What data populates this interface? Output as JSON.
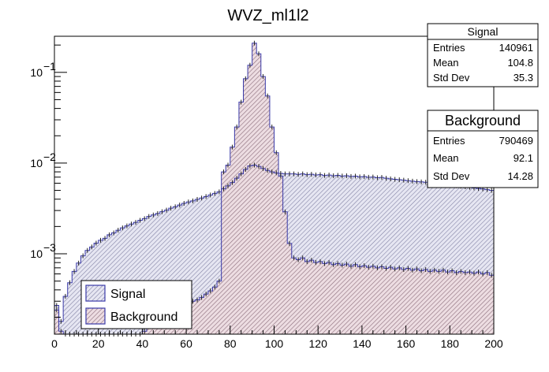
{
  "chart_data": {
    "type": "histogram",
    "title": "WVZ_ml1l2",
    "xlabel": "",
    "ylabel": "",
    "xlim": [
      0,
      200
    ],
    "ylim": [
      0.00013,
      0.25
    ],
    "yscale": "log",
    "x_ticks": [
      "0",
      "20",
      "40",
      "60",
      "80",
      "100",
      "120",
      "140",
      "160",
      "180",
      "200"
    ],
    "y_ticks": [
      {
        "value": 0.1,
        "base": "10",
        "exp": "−1"
      },
      {
        "value": 0.01,
        "base": "10",
        "exp": "−2"
      },
      {
        "value": 0.001,
        "base": "10",
        "exp": "−3"
      }
    ],
    "grid": false,
    "legend_position": "bottom-left",
    "series": [
      {
        "name": "Signal",
        "color": "#3a3aa8",
        "fill": "#c9c9e6",
        "points": [
          [
            0,
            0.00027
          ],
          [
            2,
            0.00018
          ],
          [
            4,
            0.00034
          ],
          [
            6,
            0.00048
          ],
          [
            8,
            0.00064
          ],
          [
            10,
            0.00079
          ],
          [
            12,
            0.00095
          ],
          [
            14,
            0.00109
          ],
          [
            16,
            0.00119
          ],
          [
            18,
            0.00131
          ],
          [
            20,
            0.00141
          ],
          [
            22,
            0.00148
          ],
          [
            24,
            0.00162
          ],
          [
            26,
            0.0017
          ],
          [
            28,
            0.00182
          ],
          [
            30,
            0.00193
          ],
          [
            32,
            0.00203
          ],
          [
            34,
            0.00213
          ],
          [
            36,
            0.00222
          ],
          [
            38,
            0.00234
          ],
          [
            40,
            0.00244
          ],
          [
            42,
            0.00258
          ],
          [
            44,
            0.00268
          ],
          [
            46,
            0.00278
          ],
          [
            48,
            0.00291
          ],
          [
            50,
            0.00303
          ],
          [
            52,
            0.00318
          ],
          [
            54,
            0.0033
          ],
          [
            56,
            0.00345
          ],
          [
            58,
            0.0036
          ],
          [
            60,
            0.00373
          ],
          [
            62,
            0.00383
          ],
          [
            64,
            0.00398
          ],
          [
            66,
            0.00412
          ],
          [
            68,
            0.00428
          ],
          [
            70,
            0.00445
          ],
          [
            72,
            0.00463
          ],
          [
            74,
            0.00482
          ],
          [
            76,
            0.0052
          ],
          [
            78,
            0.0056
          ],
          [
            80,
            0.0061
          ],
          [
            82,
            0.0068
          ],
          [
            84,
            0.0076
          ],
          [
            86,
            0.0085
          ],
          [
            88,
            0.0093
          ],
          [
            90,
            0.0095
          ],
          [
            92,
            0.0092
          ],
          [
            94,
            0.0087
          ],
          [
            96,
            0.0083
          ],
          [
            98,
            0.008
          ],
          [
            100,
            0.0078
          ],
          [
            102,
            0.0077
          ],
          [
            104,
            0.0076
          ],
          [
            106,
            0.0076
          ],
          [
            108,
            0.0076
          ],
          [
            110,
            0.0075
          ],
          [
            112,
            0.0076
          ],
          [
            114,
            0.00745
          ],
          [
            116,
            0.00752
          ],
          [
            118,
            0.0074
          ],
          [
            120,
            0.00745
          ],
          [
            122,
            0.0073
          ],
          [
            124,
            0.00738
          ],
          [
            126,
            0.00725
          ],
          [
            128,
            0.00732
          ],
          [
            130,
            0.0072
          ],
          [
            132,
            0.00725
          ],
          [
            134,
            0.00712
          ],
          [
            136,
            0.00718
          ],
          [
            138,
            0.00705
          ],
          [
            140,
            0.0071
          ],
          [
            142,
            0.00698
          ],
          [
            144,
            0.00702
          ],
          [
            146,
            0.0069
          ],
          [
            148,
            0.00695
          ],
          [
            150,
            0.0068
          ],
          [
            152,
            0.0067
          ],
          [
            154,
            0.00662
          ],
          [
            156,
            0.00655
          ],
          [
            158,
            0.00648
          ],
          [
            160,
            0.0064
          ],
          [
            162,
            0.00632
          ],
          [
            164,
            0.00625
          ],
          [
            166,
            0.0062
          ],
          [
            168,
            0.00615
          ],
          [
            170,
            0.00605
          ],
          [
            172,
            0.00598
          ],
          [
            174,
            0.0059
          ],
          [
            176,
            0.00585
          ],
          [
            178,
            0.00578
          ],
          [
            180,
            0.0057
          ],
          [
            182,
            0.00562
          ],
          [
            184,
            0.00555
          ],
          [
            186,
            0.00548
          ],
          [
            188,
            0.0054
          ],
          [
            190,
            0.00532
          ],
          [
            192,
            0.00525
          ],
          [
            194,
            0.00518
          ],
          [
            196,
            0.0051
          ],
          [
            198,
            0.005
          ]
        ]
      },
      {
        "name": "Background",
        "color": "#3a3aa8",
        "fill": "#e8cfd6",
        "points": [
          [
            0,
            0.00024
          ],
          [
            2,
            0.00014
          ],
          [
            4,
            0.00013
          ],
          [
            6,
            0.00013
          ],
          [
            8,
            0.00013
          ],
          [
            10,
            0.00013
          ],
          [
            12,
            0.00013
          ],
          [
            14,
            0.00013
          ],
          [
            16,
            0.00013
          ],
          [
            18,
            0.00013
          ],
          [
            20,
            0.00013
          ],
          [
            22,
            0.00013
          ],
          [
            24,
            0.00013
          ],
          [
            26,
            0.00013
          ],
          [
            28,
            0.00013
          ],
          [
            30,
            0.00013
          ],
          [
            32,
            0.00013
          ],
          [
            34,
            0.00013
          ],
          [
            36,
            0.00013
          ],
          [
            38,
            0.00013
          ],
          [
            40,
            0.00014
          ],
          [
            42,
            0.00016
          ],
          [
            44,
            0.00018
          ],
          [
            46,
            0.0002
          ],
          [
            48,
            0.00022
          ],
          [
            50,
            0.00023
          ],
          [
            52,
            0.00024
          ],
          [
            54,
            0.00025
          ],
          [
            56,
            0.00026
          ],
          [
            58,
            0.00027
          ],
          [
            60,
            0.00028
          ],
          [
            62,
            0.0003
          ],
          [
            64,
            0.00031
          ],
          [
            66,
            0.00033
          ],
          [
            68,
            0.00036
          ],
          [
            70,
            0.00039
          ],
          [
            72,
            0.00043
          ],
          [
            74,
            0.0005
          ],
          [
            76,
            0.008
          ],
          [
            78,
            0.0095
          ],
          [
            80,
            0.015
          ],
          [
            82,
            0.025
          ],
          [
            84,
            0.047
          ],
          [
            86,
            0.085
          ],
          [
            88,
            0.12
          ],
          [
            90,
            0.21
          ],
          [
            92,
            0.16
          ],
          [
            94,
            0.09
          ],
          [
            96,
            0.055
          ],
          [
            98,
            0.025
          ],
          [
            100,
            0.013
          ],
          [
            102,
            0.0072
          ],
          [
            104,
            0.0029
          ],
          [
            106,
            0.0013
          ],
          [
            108,
            0.0009
          ],
          [
            110,
            0.00086
          ],
          [
            112,
            0.0009
          ],
          [
            114,
            0.00082
          ],
          [
            116,
            0.00085
          ],
          [
            118,
            0.0008
          ],
          [
            120,
            0.00082
          ],
          [
            122,
            0.00078
          ],
          [
            124,
            0.0008
          ],
          [
            126,
            0.00076
          ],
          [
            128,
            0.00078
          ],
          [
            130,
            0.00075
          ],
          [
            132,
            0.00077
          ],
          [
            134,
            0.00073
          ],
          [
            136,
            0.00076
          ],
          [
            138,
            0.00072
          ],
          [
            140,
            0.00074
          ],
          [
            142,
            0.00071
          ],
          [
            144,
            0.00073
          ],
          [
            146,
            0.0007
          ],
          [
            148,
            0.00072
          ],
          [
            150,
            0.00069
          ],
          [
            152,
            0.00071
          ],
          [
            154,
            0.00068
          ],
          [
            156,
            0.0007
          ],
          [
            158,
            0.00067
          ],
          [
            160,
            0.00069
          ],
          [
            162,
            0.00066
          ],
          [
            164,
            0.00068
          ],
          [
            166,
            0.00065
          ],
          [
            168,
            0.00067
          ],
          [
            170,
            0.00064
          ],
          [
            172,
            0.00066
          ],
          [
            174,
            0.00064
          ],
          [
            176,
            0.00066
          ],
          [
            178,
            0.00063
          ],
          [
            180,
            0.00065
          ],
          [
            182,
            0.00062
          ],
          [
            184,
            0.00064
          ],
          [
            186,
            0.00062
          ],
          [
            188,
            0.00063
          ],
          [
            190,
            0.00061
          ],
          [
            192,
            0.00063
          ],
          [
            194,
            0.0006
          ],
          [
            196,
            0.00062
          ],
          [
            198,
            0.00058
          ]
        ]
      }
    ],
    "stats": [
      {
        "name": "Signal",
        "rows": [
          {
            "label": "Entries",
            "value": "140961"
          },
          {
            "label": "Mean",
            "value": "104.8"
          },
          {
            "label": "Std Dev",
            "value": "35.3"
          }
        ]
      },
      {
        "name": "Background",
        "rows": [
          {
            "label": "Entries",
            "value": "790469"
          },
          {
            "label": "Mean",
            "value": "92.1"
          },
          {
            "label": "Std Dev",
            "value": "14.28"
          }
        ]
      }
    ]
  }
}
